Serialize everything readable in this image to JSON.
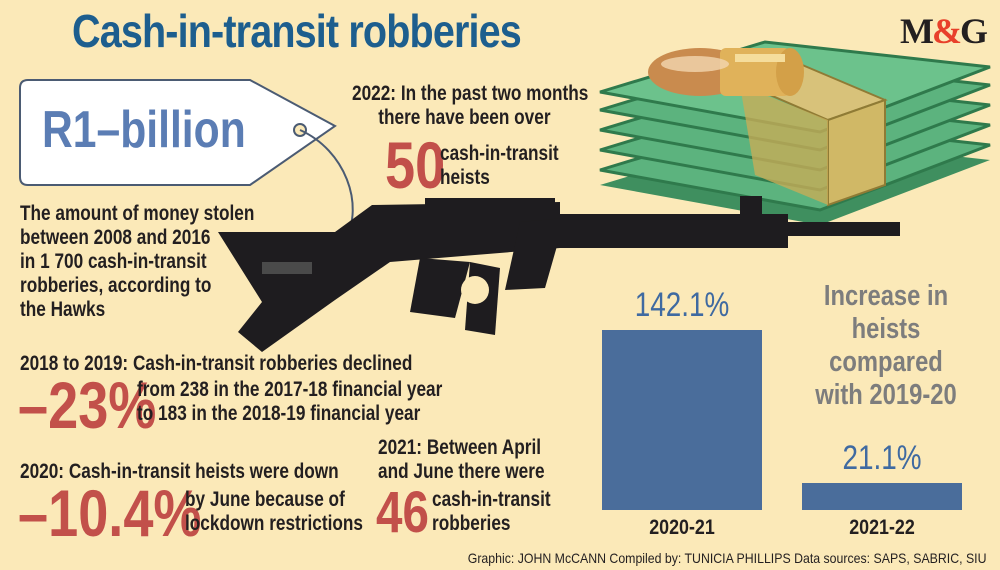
{
  "header": {
    "title": "Cash-in-transit robberies",
    "logo_left": "M",
    "logo_amp": "&",
    "logo_right": "G"
  },
  "price_tag": {
    "amount": "R1–billion",
    "lines": [
      "The amount of money stolen",
      "between 2008 and 2016",
      "in 1 700 cash-in-transit",
      "robberies, according to",
      "the Hawks"
    ]
  },
  "fact_2022": {
    "lead": "2022:",
    "line1_rest": " In the past two months",
    "line2": "there have been over",
    "number": "50",
    "label_lines": [
      "cash-in-transit",
      "heists"
    ]
  },
  "fact_2018": {
    "lead": "2018 to 2019:",
    "line1_rest": " Cash-in-transit robberies declined",
    "number": "–23%",
    "lines": [
      "from 238 in the 2017-18 financial year",
      "to 183 in the 2018-19 financial year"
    ]
  },
  "fact_2020": {
    "lead": "2020:",
    "line1_rest": " Cash-in-transit heists were down",
    "number": "–10.4%",
    "lines": [
      "by June because of",
      "lockdown restrictions"
    ]
  },
  "fact_2021": {
    "lead": "2021:",
    "line1_rest": " Between April",
    "line2": "and June there were",
    "number": "46",
    "label_lines": [
      "cash-in-transit",
      "robberies"
    ]
  },
  "chart_data": {
    "type": "bar",
    "title": "Increase in heists compared with 2019-20",
    "title_lines": [
      "Increase in",
      "heists compared",
      "with 2019-20"
    ],
    "categories": [
      "2020-21",
      "2021-22"
    ],
    "values": [
      142.1,
      21.1
    ],
    "value_labels": [
      "142.1%",
      "21.1%"
    ],
    "ylim": [
      0,
      142.1
    ],
    "bar_color": "#4a6d9b",
    "grid": false
  },
  "credits": "Graphic: JOHN McCANN  Compiled by: TUNICIA PHILLIPS  Data sources: SAPS, SABRIC, SIU",
  "colors": {
    "background": "#fbe9b8",
    "title": "#1d5e8e",
    "accent_red": "#c2504a",
    "tag_blue": "#5b7db4",
    "bill_green": "#55b07a"
  },
  "icons": [
    "rifle-icon",
    "bullet-icon",
    "cash-stack-icon",
    "price-tag-icon"
  ]
}
